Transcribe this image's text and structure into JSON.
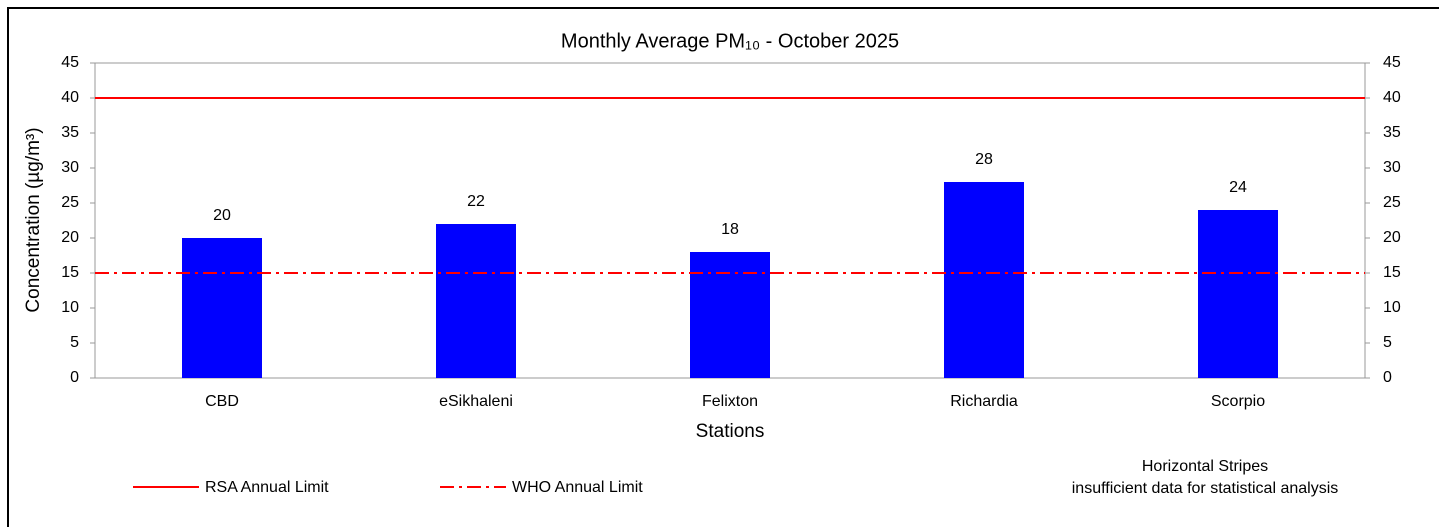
{
  "chart_data": {
    "type": "bar",
    "title": "Monthly Average PM₁₀ - October 2025",
    "x_label": "Stations",
    "y_label": "Concentration (µg/m³)",
    "categories": [
      "CBD",
      "eSikhaleni",
      "Felixton",
      "Richardia",
      "Scorpio"
    ],
    "values": [
      20,
      22,
      18,
      28,
      24
    ],
    "color": "#0000ff",
    "ylim": [
      0,
      45
    ],
    "yticks": [
      0,
      5,
      10,
      15,
      20,
      25,
      30,
      35,
      40,
      45
    ],
    "y2lim": [
      0,
      45
    ],
    "y2ticks": [
      0,
      5,
      10,
      15,
      20,
      25,
      30,
      35,
      40,
      45
    ],
    "grid": false,
    "reference_lines": [
      {
        "name": "RSA Annual Limit",
        "value": 40,
        "color": "#ff0000",
        "style": "solid"
      },
      {
        "name": "WHO Annual Limit",
        "value": 15,
        "color": "#ff0000",
        "style": "dashdot"
      }
    ],
    "annotations": [
      "Horizontal Stripes",
      "insufficient data for statistical analysis"
    ]
  }
}
